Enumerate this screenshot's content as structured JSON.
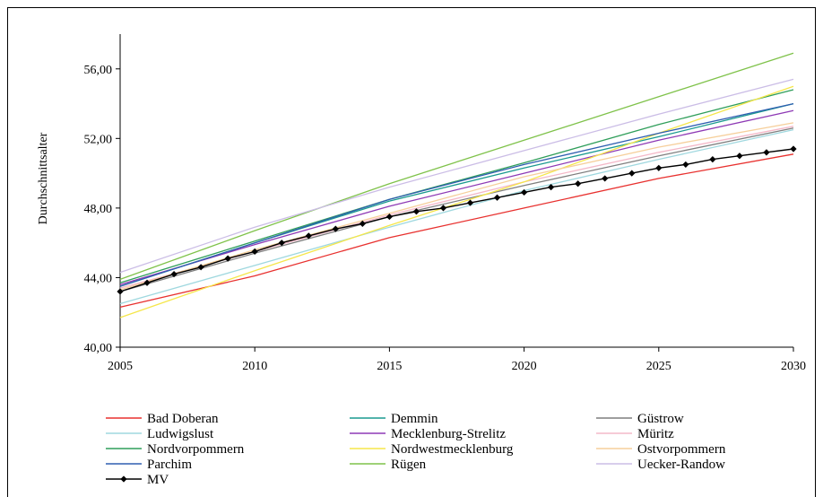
{
  "chart_data": {
    "type": "line",
    "title": "",
    "xlabel": "",
    "ylabel": "Durchschnittsalter",
    "xlim": [
      2005,
      2030
    ],
    "ylim": [
      40,
      58
    ],
    "grid": false,
    "legend_position": "bottom",
    "x_ticks": [
      {
        "value": 2005,
        "label": "2005"
      },
      {
        "value": 2010,
        "label": "2010"
      },
      {
        "value": 2015,
        "label": "2015"
      },
      {
        "value": 2020,
        "label": "2020"
      },
      {
        "value": 2025,
        "label": "2025"
      },
      {
        "value": 2030,
        "label": "2030"
      }
    ],
    "y_ticks": [
      {
        "value": 40,
        "label": "40,00"
      },
      {
        "value": 44,
        "label": "44,00"
      },
      {
        "value": 48,
        "label": "48,00"
      },
      {
        "value": 52,
        "label": "52,00"
      },
      {
        "value": 56,
        "label": "56,00"
      }
    ],
    "series": [
      {
        "name": "Bad Doberan",
        "color": "#e8312f",
        "marker": false,
        "points": [
          [
            2005,
            42.3
          ],
          [
            2010,
            44.1
          ],
          [
            2015,
            46.3
          ],
          [
            2020,
            48.0
          ],
          [
            2025,
            49.7
          ],
          [
            2030,
            51.1
          ]
        ]
      },
      {
        "name": "Demmin",
        "color": "#1a9a8f",
        "marker": false,
        "points": [
          [
            2005,
            43.5
          ],
          [
            2010,
            46.0
          ],
          [
            2015,
            48.4
          ],
          [
            2020,
            50.3
          ],
          [
            2025,
            52.1
          ],
          [
            2030,
            54.0
          ]
        ]
      },
      {
        "name": "Güstrow",
        "color": "#7f7f7f",
        "marker": false,
        "points": [
          [
            2005,
            43.2
          ],
          [
            2010,
            45.4
          ],
          [
            2015,
            47.5
          ],
          [
            2020,
            49.3
          ],
          [
            2025,
            51.0
          ],
          [
            2030,
            52.6
          ]
        ]
      },
      {
        "name": "Ludwigslust",
        "color": "#9fd8df",
        "marker": false,
        "points": [
          [
            2005,
            42.5
          ],
          [
            2010,
            44.7
          ],
          [
            2015,
            46.9
          ],
          [
            2020,
            49.0
          ],
          [
            2025,
            50.8
          ],
          [
            2030,
            52.5
          ]
        ]
      },
      {
        "name": "Mecklenburg-Strelitz",
        "color": "#8e3ab5",
        "marker": false,
        "points": [
          [
            2005,
            43.6
          ],
          [
            2010,
            45.9
          ],
          [
            2015,
            48.1
          ],
          [
            2020,
            50.0
          ],
          [
            2025,
            51.9
          ],
          [
            2030,
            53.6
          ]
        ]
      },
      {
        "name": "Müritz",
        "color": "#f4b8c8",
        "marker": false,
        "points": [
          [
            2005,
            43.4
          ],
          [
            2010,
            45.5
          ],
          [
            2015,
            47.6
          ],
          [
            2020,
            49.5
          ],
          [
            2025,
            51.2
          ],
          [
            2030,
            52.7
          ]
        ]
      },
      {
        "name": "Nordvorpommern",
        "color": "#2f9e5a",
        "marker": false,
        "points": [
          [
            2005,
            43.7
          ],
          [
            2010,
            46.1
          ],
          [
            2015,
            48.5
          ],
          [
            2020,
            50.6
          ],
          [
            2025,
            52.8
          ],
          [
            2030,
            54.8
          ]
        ]
      },
      {
        "name": "Nordwestmecklenburg",
        "color": "#f5e64a",
        "marker": false,
        "points": [
          [
            2005,
            41.7
          ],
          [
            2010,
            44.4
          ],
          [
            2015,
            47.0
          ],
          [
            2020,
            49.5
          ],
          [
            2025,
            52.3
          ],
          [
            2030,
            55.0
          ]
        ]
      },
      {
        "name": "Ostvorpommern",
        "color": "#f6cf9b",
        "marker": false,
        "points": [
          [
            2005,
            43.3
          ],
          [
            2010,
            45.6
          ],
          [
            2015,
            47.7
          ],
          [
            2020,
            49.8
          ],
          [
            2025,
            51.5
          ],
          [
            2030,
            52.9
          ]
        ]
      },
      {
        "name": "Parchim",
        "color": "#2e5fb0",
        "marker": false,
        "points": [
          [
            2005,
            43.5
          ],
          [
            2010,
            46.0
          ],
          [
            2015,
            48.5
          ],
          [
            2020,
            50.5
          ],
          [
            2025,
            52.3
          ],
          [
            2030,
            54.0
          ]
        ]
      },
      {
        "name": "Rügen",
        "color": "#7fc24a",
        "marker": false,
        "points": [
          [
            2005,
            43.9
          ],
          [
            2010,
            46.7
          ],
          [
            2015,
            49.4
          ],
          [
            2020,
            51.9
          ],
          [
            2025,
            54.4
          ],
          [
            2030,
            56.9
          ]
        ]
      },
      {
        "name": "Uecker-Randow",
        "color": "#cbbde6",
        "marker": false,
        "points": [
          [
            2005,
            44.3
          ],
          [
            2010,
            46.9
          ],
          [
            2015,
            49.2
          ],
          [
            2020,
            51.3
          ],
          [
            2025,
            53.4
          ],
          [
            2030,
            55.4
          ]
        ]
      },
      {
        "name": "MV",
        "color": "#000000",
        "marker": true,
        "points": [
          [
            2005,
            43.2
          ],
          [
            2006,
            43.7
          ],
          [
            2007,
            44.2
          ],
          [
            2008,
            44.6
          ],
          [
            2009,
            45.1
          ],
          [
            2010,
            45.5
          ],
          [
            2011,
            46.0
          ],
          [
            2012,
            46.4
          ],
          [
            2013,
            46.8
          ],
          [
            2014,
            47.1
          ],
          [
            2015,
            47.5
          ],
          [
            2016,
            47.8
          ],
          [
            2017,
            48.0
          ],
          [
            2018,
            48.3
          ],
          [
            2019,
            48.6
          ],
          [
            2020,
            48.9
          ],
          [
            2021,
            49.2
          ],
          [
            2022,
            49.4
          ],
          [
            2023,
            49.7
          ],
          [
            2024,
            50.0
          ],
          [
            2025,
            50.3
          ],
          [
            2026,
            50.5
          ],
          [
            2027,
            50.8
          ],
          [
            2028,
            51.0
          ],
          [
            2029,
            51.2
          ],
          [
            2030,
            51.4
          ]
        ]
      }
    ]
  }
}
